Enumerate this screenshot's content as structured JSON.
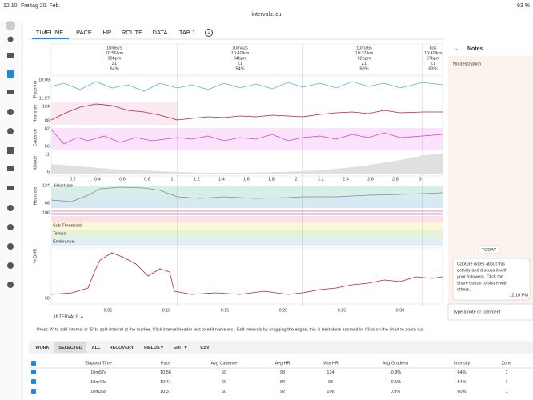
{
  "status_bar": {
    "time": "12:10",
    "date": "Freitag 20. Feb.",
    "battery": "93 %"
  },
  "url": "intervals.icu",
  "tabs": [
    "TIMELINE",
    "PACE",
    "HR",
    "ROUTE",
    "DATA",
    "TAB 1"
  ],
  "intervals": [
    {
      "time": "10m57s",
      "pace": "10:56/km",
      "hr": "98bpm",
      "zone": "Z1",
      "intensity": "64%"
    },
    {
      "time": "10m42s",
      "pace": "10:41/km",
      "hr": "84bpm",
      "zone": "Z1",
      "intensity": "54%"
    },
    {
      "time": "10m36s",
      "pace": "10:37/km",
      "hr": "92bpm",
      "zone": "Z1",
      "intensity": "60%"
    },
    {
      "time": "83s",
      "pace": "10:41/km",
      "hr": "97bpm",
      "zone": "Z1",
      "intensity": "63%"
    }
  ],
  "charts": {
    "panels": [
      {
        "label": "Pace/km",
        "ticks": [
          "10:09",
          "11:27"
        ]
      },
      {
        "label": "Heartrate",
        "ticks": [
          "124",
          "88"
        ]
      },
      {
        "label": "Cadence",
        "ticks": [
          "62",
          "56"
        ]
      },
      {
        "label": "Altitude",
        "ticks": [
          "11",
          "6"
        ]
      }
    ],
    "distance_ticks": [
      "0.2",
      "0.4",
      "0.6",
      "0.8",
      "1",
      "1.2",
      "1.4",
      "1.6",
      "1.8",
      "2",
      "2.2",
      "2.4",
      "2.6",
      "2.8",
      "3"
    ],
    "hr_panel": {
      "label": "Heartrate",
      "title": "Heartrate",
      "ticks": [
        "124",
        "68",
        "106"
      ]
    },
    "zones": [
      "Sub Threshold",
      "Tempo",
      "Endurance."
    ],
    "dhr_panel": {
      "label": "% DHR",
      "ticks": [
        "50"
      ]
    },
    "time_ticks": [
      "0:05",
      "0:10",
      "0:15",
      "0:20",
      "0:25",
      "0:30"
    ],
    "intervals_toggle": "INTERVALS ▲"
  },
  "notes": {
    "title": "Notes",
    "description": "No description",
    "today": "TODAY",
    "message": [
      "Capture notes about this",
      "activity and discuss it with",
      "your followers. Click the",
      "share button to share with",
      "others."
    ],
    "message_time": "12:10 PM",
    "input_placeholder": "Type a note or comment"
  },
  "help_text": "Press 'A' to add interval or 'S' to split interval at the marker. Click interval header text to edit name etc.. Edit intervals by dragging the edges, this is best done zoomed in. Click on the chart to zoom out.",
  "buttons": [
    "WORK",
    "SELECTED",
    "ALL",
    "RECOVERY",
    "FIELDS ▾",
    "EDIT ▾",
    "CSV"
  ],
  "table": {
    "headers": [
      "Elapsed Time",
      "Pace",
      "Avg Cadence",
      "Avg HR",
      "Max HR",
      "Avg Gradient",
      "Intensity",
      "Zone"
    ],
    "rows": [
      [
        "10m57s",
        "10:56",
        "59",
        "98",
        "124",
        "-0.8%",
        "64%",
        "1"
      ],
      [
        "10m42s",
        "10:41",
        "60",
        "84",
        "93",
        "-0.1%",
        "54%",
        "1"
      ],
      [
        "10m36s",
        "10:37",
        "60",
        "92",
        "106",
        "0.9%",
        "60%",
        "1"
      ]
    ]
  }
}
